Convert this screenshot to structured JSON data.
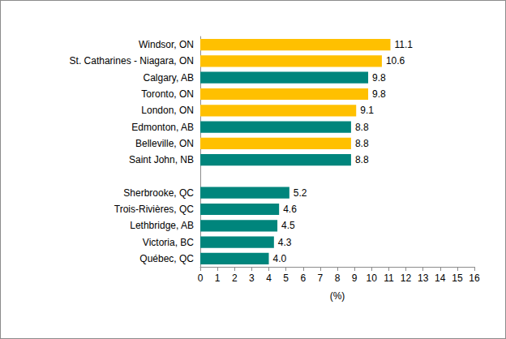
{
  "chart_data": {
    "type": "bar",
    "orientation": "horizontal",
    "categories": [
      "Windsor, ON",
      "St. Catharines - Niagara, ON",
      "Calgary, AB",
      "Toronto, ON",
      "London, ON",
      "Edmonton, AB",
      "Belleville, ON",
      "Saint John, NB",
      null,
      "Sherbrooke, QC",
      "Trois-Rivières, QC",
      "Lethbridge, AB",
      "Victoria, BC",
      "Québec, QC"
    ],
    "values": [
      11.1,
      10.6,
      9.8,
      9.8,
      9.1,
      8.8,
      8.8,
      8.8,
      null,
      5.2,
      4.6,
      4.5,
      4.3,
      4.0
    ],
    "value_labels": [
      "11.1",
      "10.6",
      "9.8",
      "9.8",
      "9.1",
      "8.8",
      "8.8",
      "8.8",
      null,
      "5.2",
      "4.6",
      "4.5",
      "4.3",
      "4.0"
    ],
    "colors": [
      "#ffc000",
      "#ffc000",
      "#00857c",
      "#ffc000",
      "#ffc000",
      "#00857c",
      "#ffc000",
      "#00857c",
      null,
      "#00857c",
      "#00857c",
      "#00857c",
      "#00857c",
      "#00857c"
    ],
    "x_label": "(%)",
    "xlim": [
      0,
      16
    ],
    "xticks": [
      0,
      1,
      2,
      3,
      4,
      5,
      6,
      7,
      8,
      9,
      10,
      11,
      12,
      13,
      14,
      15,
      16
    ],
    "grid": false,
    "data_labels": true
  }
}
